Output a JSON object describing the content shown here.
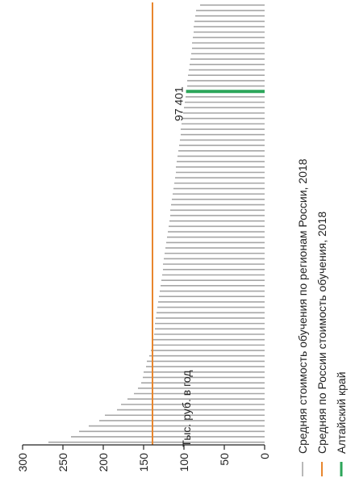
{
  "chart_data": {
    "type": "bar",
    "orientation": "horizontal",
    "rotation": "90deg-clockwise",
    "ylabel": "Тыс. руб. в год",
    "ylim": [
      0,
      300
    ],
    "yticks": [
      "0",
      "50",
      "100",
      "150",
      "200",
      "250",
      "300"
    ],
    "grid": false,
    "legend_position": "right",
    "categories_count": 82,
    "series": [
      {
        "name": "Средняя стоимость обучения по регионам России, 2018",
        "color": "#a6a6a6",
        "values": [
          268,
          240,
          230,
          218,
          205,
          198,
          183,
          178,
          170,
          162,
          157,
          153,
          151,
          150,
          147,
          146,
          143,
          141,
          140,
          138,
          137,
          136,
          136,
          135,
          134,
          133,
          132,
          131,
          130,
          129,
          128,
          127,
          126,
          126,
          125,
          124,
          123,
          122,
          121,
          120,
          119,
          118,
          117,
          117,
          116,
          115,
          114,
          113,
          112,
          111,
          110,
          110,
          109,
          108,
          107,
          106,
          105,
          104,
          104,
          103,
          102,
          101,
          100,
          99,
          98,
          97.401,
          96,
          96,
          95,
          94,
          93,
          92,
          91,
          90,
          90,
          89,
          88,
          88,
          87,
          86,
          85,
          80
        ]
      },
      {
        "name": "Средняя по России стоимость обучения, 2018",
        "color": "#e8862e",
        "value": 139
      },
      {
        "name": "Алтайский край",
        "color": "#2ca65a",
        "value": 97.401,
        "index": 65,
        "label": "97 401"
      }
    ]
  }
}
